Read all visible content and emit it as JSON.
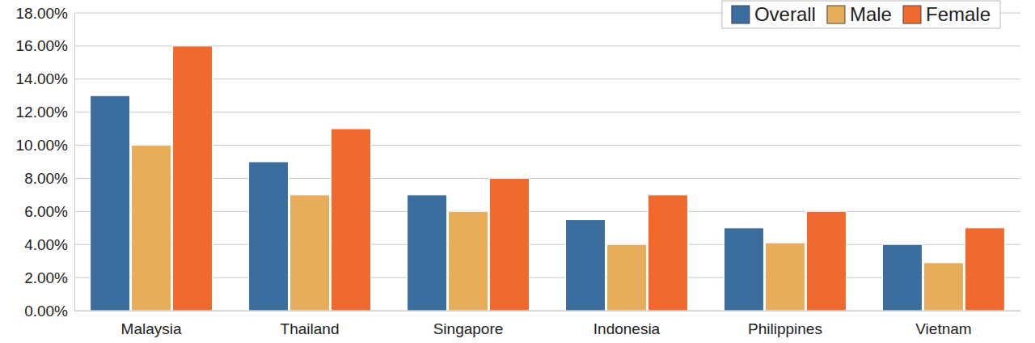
{
  "chart_data": {
    "type": "bar",
    "categories": [
      "Malaysia",
      "Thailand",
      "Singapore",
      "Indonesia",
      "Philippines",
      "Vietnam"
    ],
    "series": [
      {
        "name": "Overall",
        "color": "#3b6e9e",
        "values": [
          13,
          9,
          7,
          5.5,
          5,
          4
        ]
      },
      {
        "name": "Male",
        "color": "#e8ad5a",
        "values": [
          10,
          7,
          6,
          4,
          4.1,
          2.9
        ]
      },
      {
        "name": "Female",
        "color": "#f06a30",
        "values": [
          16,
          11,
          8,
          7,
          6,
          5
        ]
      }
    ],
    "ylim": [
      0,
      18
    ],
    "yticks": [
      {
        "value": 0,
        "label": "0.00%"
      },
      {
        "value": 2,
        "label": "2.00%"
      },
      {
        "value": 4,
        "label": "4.00%"
      },
      {
        "value": 6,
        "label": "6.00%"
      },
      {
        "value": 8,
        "label": "8.00%"
      },
      {
        "value": 10,
        "label": "10.00%"
      },
      {
        "value": 12,
        "label": "12.00%"
      },
      {
        "value": 14,
        "label": "14.00%"
      },
      {
        "value": 16,
        "label": "16.00%"
      },
      {
        "value": 18,
        "label": "18.00%"
      }
    ],
    "grid": true,
    "legend": "top-right"
  }
}
